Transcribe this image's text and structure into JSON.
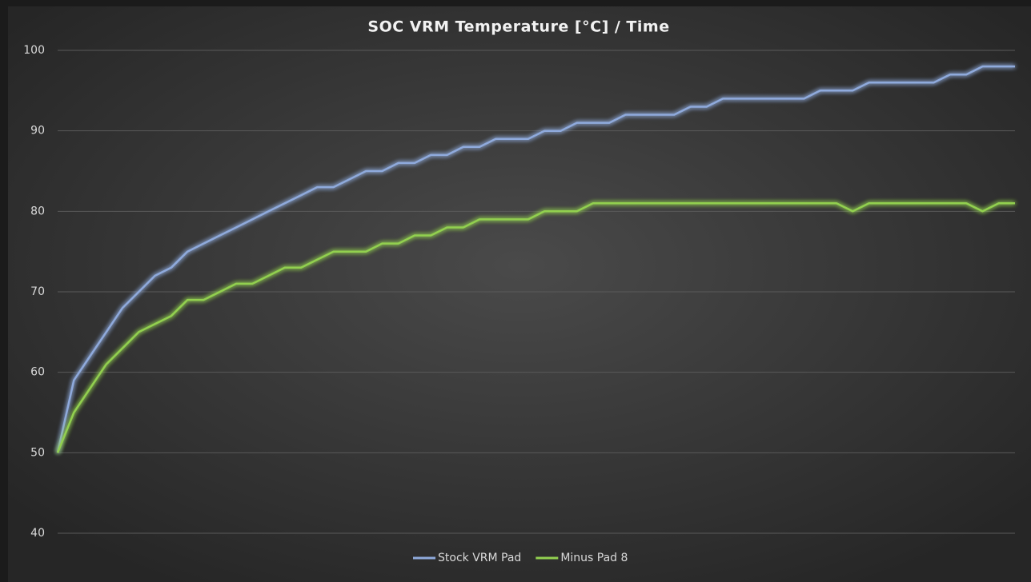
{
  "chart_data": {
    "type": "line",
    "title": "SOC VRM Temperature [°C] / Time",
    "categories": [
      null,
      null,
      null,
      null,
      null,
      null,
      null,
      null,
      null,
      null,
      null,
      null,
      null,
      null,
      null,
      null,
      null,
      null,
      null,
      null,
      null,
      null,
      null,
      null,
      null,
      null,
      null,
      null,
      null,
      null,
      null,
      null,
      null,
      null,
      null,
      null,
      null,
      null,
      null,
      null,
      null,
      null,
      null,
      null,
      null,
      null,
      null,
      null,
      null,
      null,
      null,
      null,
      null,
      null,
      null,
      null,
      null,
      null,
      null,
      null
    ],
    "series": [
      {
        "name": "Stock VRM Pad",
        "color": "#8faadc",
        "values": [
          50,
          59,
          62,
          65,
          68,
          70,
          72,
          73,
          75,
          76,
          77,
          78,
          79,
          80,
          81,
          82,
          83,
          83,
          84,
          85,
          85,
          86,
          86,
          87,
          87,
          88,
          88,
          89,
          89,
          89,
          90,
          90,
          91,
          91,
          91,
          92,
          92,
          92,
          92,
          93,
          93,
          94,
          94,
          94,
          94,
          94,
          94,
          95,
          95,
          95,
          96,
          96,
          96,
          96,
          96,
          97,
          97,
          98,
          98,
          98
        ]
      },
      {
        "name": "Minus Pad 8",
        "color": "#92d050",
        "values": [
          50,
          55,
          58,
          61,
          63,
          65,
          66,
          67,
          69,
          69,
          70,
          71,
          71,
          72,
          73,
          73,
          74,
          75,
          75,
          75,
          76,
          76,
          77,
          77,
          78,
          78,
          79,
          79,
          79,
          79,
          80,
          80,
          80,
          81,
          81,
          81,
          81,
          81,
          81,
          81,
          81,
          81,
          81,
          81,
          81,
          81,
          81,
          81,
          81,
          80,
          81,
          81,
          81,
          81,
          81,
          81,
          81,
          80,
          81,
          81
        ]
      }
    ],
    "ylim": [
      40,
      100
    ],
    "yticks": [
      40,
      50,
      60,
      70,
      80,
      90,
      100
    ],
    "grid": true,
    "legend": "bottom"
  }
}
